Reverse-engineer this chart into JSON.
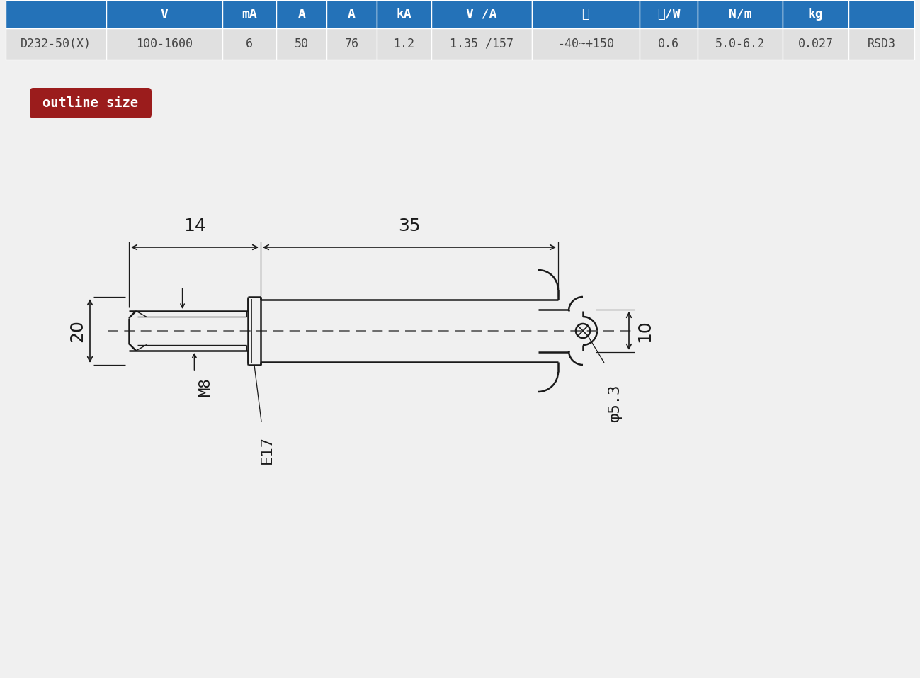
{
  "table_header_bg": "#2472b8",
  "table_header_text_color": "#ffffff",
  "table_row_bg": "#e0e0e0",
  "table_row_text_color": "#444444",
  "table_headers": [
    "",
    "V",
    "mA",
    "A",
    "A",
    "kA",
    "V /A",
    "℃",
    "℃/W",
    "N/m",
    "kg",
    ""
  ],
  "table_row": [
    "D232-50(X)",
    "100-1600",
    "6",
    "50",
    "76",
    "1.2",
    "1.35 /157",
    "-40~+150",
    "0.6",
    "5.0-6.2",
    "0.027",
    "RSD3"
  ],
  "outline_label_bg": "#9b1c1c",
  "outline_label_text": "outline size",
  "outline_label_text_color": "#ffffff",
  "dim_14": "14",
  "dim_35": "35",
  "dim_20": "20",
  "dim_10": "10",
  "dim_M8": "M8",
  "dim_E17": "E17",
  "dim_phi53": "φ5.3",
  "line_color": "#1a1a1a",
  "dim_color": "#1a1a1a",
  "bg_color": "#f0f0f0",
  "col_widths_raw": [
    1.3,
    1.5,
    0.7,
    0.65,
    0.65,
    0.7,
    1.3,
    1.4,
    0.75,
    1.1,
    0.85,
    0.85
  ]
}
